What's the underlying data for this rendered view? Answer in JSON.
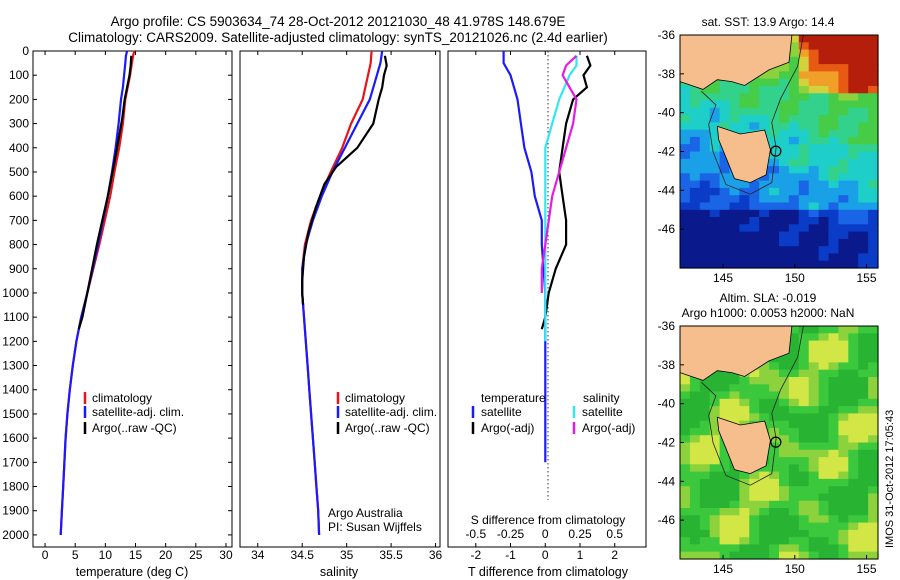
{
  "header": {
    "title_line1": "Argo profile: CS 5903634_74 28-Oct-2012 20121030_48 41.978S 148.679E",
    "title_line2": "Climatology: CARS2009. Satellite-adjusted climatology: synTS_20121026.nc (2.4d earlier)"
  },
  "chart_data": [
    {
      "type": "line",
      "panel": "temperature",
      "xlabel": "temperature (deg C)",
      "x_ticks": [
        "0",
        "5",
        "10",
        "15",
        "20",
        "25",
        "30"
      ],
      "xlim": [
        -2,
        31
      ],
      "ylim": [
        2050,
        0
      ],
      "y_ticks": [
        "0",
        "100",
        "200",
        "300",
        "400",
        "500",
        "600",
        "700",
        "800",
        "900",
        "1000",
        "1100",
        "1200",
        "1300",
        "1400",
        "1500",
        "1600",
        "1700",
        "1800",
        "1900",
        "2000"
      ],
      "legend": [
        "climatology",
        "satellite-adj. clim.",
        "Argo(..raw -QC)"
      ],
      "series": [
        {
          "name": "climatology",
          "color": "#e8141b",
          "points": [
            [
              14.8,
              0
            ],
            [
              14.6,
              20
            ],
            [
              14.4,
              50
            ],
            [
              14.1,
              100
            ],
            [
              13.7,
              150
            ],
            [
              13.3,
              200
            ],
            [
              12.9,
              300
            ],
            [
              12.3,
              400
            ],
            [
              11.5,
              500
            ],
            [
              10.8,
              600
            ],
            [
              9.9,
              700
            ],
            [
              9.0,
              800
            ],
            [
              8.0,
              900
            ],
            [
              7.0,
              1000
            ],
            [
              6.0,
              1100
            ],
            [
              5.2,
              1200
            ],
            [
              4.6,
              1300
            ],
            [
              4.1,
              1400
            ],
            [
              3.7,
              1500
            ],
            [
              3.4,
              1600
            ],
            [
              3.2,
              1700
            ],
            [
              3.0,
              1800
            ],
            [
              2.8,
              1900
            ],
            [
              2.6,
              2000
            ]
          ]
        },
        {
          "name": "satellite-adj. clim.",
          "color": "#1a1aff",
          "points": [
            [
              13.6,
              0
            ],
            [
              13.4,
              20
            ],
            [
              13.3,
              50
            ],
            [
              13.1,
              100
            ],
            [
              12.9,
              150
            ],
            [
              12.6,
              200
            ],
            [
              12.2,
              300
            ],
            [
              11.7,
              400
            ],
            [
              11.1,
              500
            ],
            [
              10.4,
              600
            ],
            [
              9.6,
              700
            ],
            [
              8.8,
              800
            ],
            [
              7.9,
              900
            ],
            [
              7.0,
              1000
            ],
            [
              6.0,
              1100
            ],
            [
              5.2,
              1200
            ],
            [
              4.6,
              1300
            ],
            [
              4.1,
              1400
            ],
            [
              3.7,
              1500
            ],
            [
              3.4,
              1600
            ],
            [
              3.2,
              1700
            ],
            [
              3.0,
              1800
            ],
            [
              2.8,
              1900
            ],
            [
              2.6,
              2000
            ]
          ]
        },
        {
          "name": "Argo(..raw -QC)",
          "color": "#000000",
          "points": [
            [
              14.3,
              20
            ],
            [
              14.2,
              60
            ],
            [
              14.0,
              100
            ],
            [
              13.6,
              150
            ],
            [
              13.2,
              200
            ],
            [
              12.8,
              280
            ],
            [
              12.3,
              350
            ],
            [
              11.8,
              420
            ],
            [
              11.2,
              500
            ],
            [
              10.4,
              600
            ],
            [
              9.5,
              700
            ],
            [
              8.6,
              800
            ],
            [
              7.8,
              900
            ],
            [
              7.0,
              1000
            ],
            [
              6.2,
              1100
            ],
            [
              5.6,
              1150
            ]
          ]
        }
      ]
    },
    {
      "type": "line",
      "panel": "salinity",
      "xlabel": "salinity",
      "x_ticks": [
        "34",
        "34.5",
        "35",
        "35.5",
        "36"
      ],
      "xlim": [
        33.8,
        36.05
      ],
      "ylim": [
        2050,
        0
      ],
      "legend": [
        "climatology",
        "satellite-adj. clim.",
        "Argo(..raw -QC)"
      ],
      "annotation": [
        "Argo Australia",
        "PI: Susan Wijffels"
      ],
      "series": [
        {
          "name": "climatology",
          "color": "#e8141b",
          "points": [
            [
              35.28,
              0
            ],
            [
              35.27,
              50
            ],
            [
              35.24,
              100
            ],
            [
              35.18,
              200
            ],
            [
              35.05,
              300
            ],
            [
              34.95,
              400
            ],
            [
              34.82,
              500
            ],
            [
              34.7,
              600
            ],
            [
              34.6,
              700
            ],
            [
              34.53,
              800
            ],
            [
              34.5,
              900
            ],
            [
              34.5,
              1000
            ],
            [
              34.52,
              1100
            ],
            [
              34.54,
              1200
            ],
            [
              34.56,
              1300
            ],
            [
              34.58,
              1400
            ],
            [
              34.6,
              1500
            ],
            [
              34.62,
              1600
            ],
            [
              34.64,
              1700
            ],
            [
              34.66,
              1800
            ],
            [
              34.68,
              1900
            ],
            [
              34.69,
              2000
            ]
          ]
        },
        {
          "name": "satellite-adj. clim.",
          "color": "#1a1aff",
          "points": [
            [
              35.4,
              0
            ],
            [
              35.38,
              50
            ],
            [
              35.34,
              100
            ],
            [
              35.26,
              200
            ],
            [
              35.12,
              300
            ],
            [
              34.98,
              400
            ],
            [
              34.84,
              500
            ],
            [
              34.72,
              600
            ],
            [
              34.62,
              700
            ],
            [
              34.54,
              800
            ],
            [
              34.5,
              900
            ],
            [
              34.5,
              1000
            ],
            [
              34.52,
              1100
            ],
            [
              34.54,
              1200
            ],
            [
              34.56,
              1300
            ],
            [
              34.58,
              1400
            ],
            [
              34.6,
              1500
            ],
            [
              34.62,
              1600
            ],
            [
              34.64,
              1700
            ],
            [
              34.66,
              1800
            ],
            [
              34.68,
              1900
            ],
            [
              34.69,
              2000
            ]
          ]
        },
        {
          "name": "Argo(..raw -QC)",
          "color": "#000000",
          "points": [
            [
              35.43,
              20
            ],
            [
              35.45,
              60
            ],
            [
              35.42,
              100
            ],
            [
              35.4,
              150
            ],
            [
              35.36,
              200
            ],
            [
              35.3,
              300
            ],
            [
              35.12,
              400
            ],
            [
              34.88,
              480
            ],
            [
              34.75,
              550
            ],
            [
              34.65,
              650
            ],
            [
              34.57,
              750
            ],
            [
              34.52,
              850
            ],
            [
              34.5,
              950
            ],
            [
              34.5,
              1000
            ],
            [
              34.51,
              1050
            ]
          ]
        }
      ]
    },
    {
      "type": "line",
      "panel": "difference",
      "xlabel": "T difference from climatology",
      "xlabel_top": "S difference from climatology",
      "x_ticks": [
        "-2",
        "-1",
        "0",
        "1",
        "2"
      ],
      "x_ticks_top": [
        "-0.5",
        "-0.25",
        "0",
        "0.25",
        "0.5"
      ],
      "xlim": [
        -2.8,
        2.9
      ],
      "ylim": [
        2050,
        0
      ],
      "legend_temperature": {
        "title": "temperature",
        "items": [
          "satellite",
          "Argo(-adj)"
        ]
      },
      "legend_salinity": {
        "title": "salinity",
        "items": [
          "satellite",
          "Argo(-adj)"
        ]
      },
      "series": [
        {
          "name": "temperature satellite",
          "color": "#1a1aff",
          "points": [
            [
              -1.2,
              0
            ],
            [
              -1.2,
              50
            ],
            [
              -1.0,
              100
            ],
            [
              -0.8,
              200
            ],
            [
              -0.7,
              300
            ],
            [
              -0.6,
              400
            ],
            [
              -0.4,
              500
            ],
            [
              -0.3,
              600
            ],
            [
              -0.1,
              700
            ],
            [
              -0.1,
              800
            ],
            [
              0,
              1000
            ],
            [
              0,
              1200
            ],
            [
              0,
              1400
            ],
            [
              0,
              1600
            ],
            [
              0,
              1700
            ]
          ]
        },
        {
          "name": "temperature Argo(-adj)",
          "color": "#000000",
          "points": [
            [
              1.2,
              20
            ],
            [
              1.3,
              60
            ],
            [
              1.1,
              100
            ],
            [
              1.2,
              150
            ],
            [
              0.8,
              200
            ],
            [
              0.6,
              300
            ],
            [
              0.5,
              400
            ],
            [
              0.4,
              500
            ],
            [
              0.5,
              600
            ],
            [
              0.6,
              700
            ],
            [
              0.6,
              800
            ],
            [
              0.3,
              900
            ],
            [
              0.1,
              1000
            ],
            [
              0,
              1100
            ],
            [
              -0.1,
              1150
            ]
          ]
        },
        {
          "name": "salinity satellite",
          "color": "#33e6f0",
          "points": [
            [
              0.9,
              20
            ],
            [
              0.9,
              60
            ],
            [
              0.7,
              100
            ],
            [
              0.4,
              200
            ],
            [
              0.2,
              300
            ],
            [
              0,
              400
            ],
            [
              0,
              500
            ],
            [
              0,
              600
            ],
            [
              0,
              700
            ],
            [
              0,
              800
            ],
            [
              0,
              900
            ],
            [
              0,
              1000
            ],
            [
              0,
              1100
            ],
            [
              0,
              1200
            ]
          ]
        },
        {
          "name": "salinity Argo(-adj)",
          "color": "#e619e6",
          "points": [
            [
              0.9,
              20
            ],
            [
              0.6,
              60
            ],
            [
              0.5,
              100
            ],
            [
              0.9,
              200
            ],
            [
              0.8,
              300
            ],
            [
              0.6,
              400
            ],
            [
              0.4,
              500
            ],
            [
              0.2,
              600
            ],
            [
              0,
              800
            ],
            [
              -0.1,
              900
            ],
            [
              -0.1,
              1000
            ]
          ]
        }
      ]
    },
    {
      "type": "heatmap",
      "panel": "sst_map",
      "title": "sat. SST: 13.9 Argo: 14.4",
      "x_ticks": [
        "145",
        "150",
        "155"
      ],
      "y_ticks": [
        "-36",
        "-38",
        "-40",
        "-42",
        "-44",
        "-46"
      ],
      "xlim": [
        142,
        155.8
      ],
      "ylim": [
        -48,
        -36
      ],
      "argo_position": [
        148.68,
        -41.98
      ]
    },
    {
      "type": "heatmap",
      "panel": "sla_map",
      "title_line1": "Altim. SLA: -0.019",
      "title_line2": "Argo h1000: 0.0053 h2000: NaN",
      "x_ticks": [
        "145",
        "150",
        "155"
      ],
      "y_ticks": [
        "-36",
        "-38",
        "-40",
        "-42",
        "-44",
        "-46"
      ],
      "xlim": [
        142,
        155.8
      ],
      "ylim": [
        -48,
        -36
      ],
      "argo_position": [
        148.68,
        -41.98
      ]
    }
  ],
  "stamp": "IMOS 31-Oct-2012 17:05:43",
  "colors": {
    "land": "#f5be8c",
    "ocean_green": "#3cc83c"
  }
}
